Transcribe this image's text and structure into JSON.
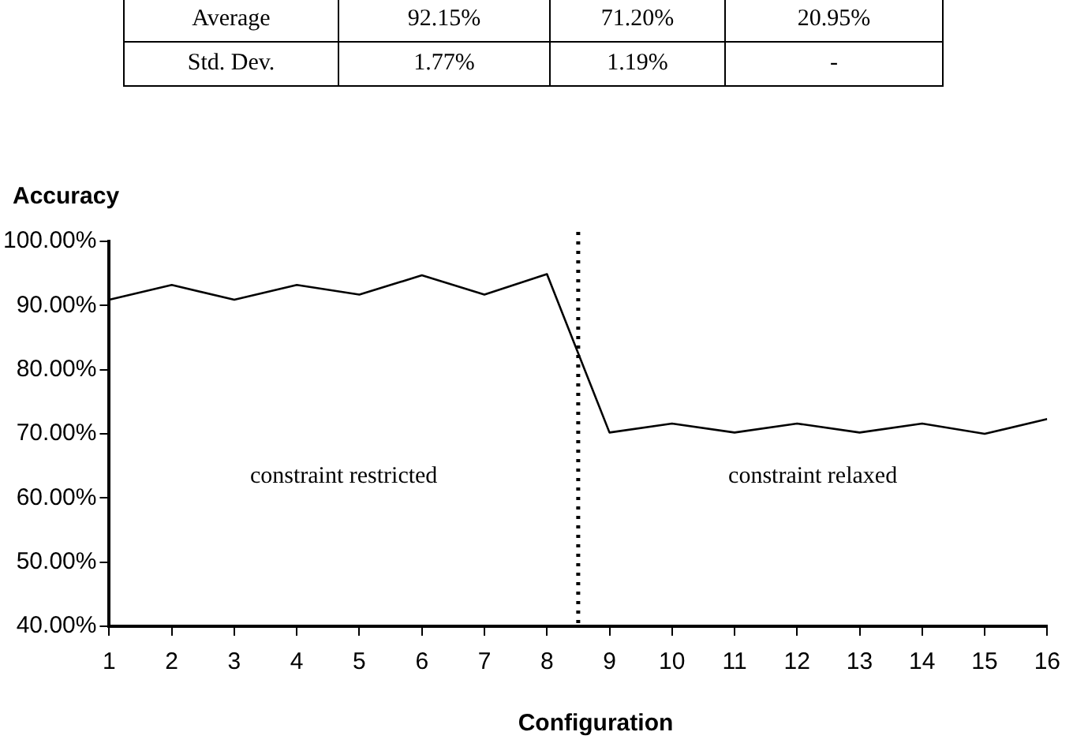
{
  "chart_data": {
    "type": "line",
    "xlabel": "Configuration",
    "ylabel": "Accuracy",
    "x": [
      1,
      2,
      3,
      4,
      5,
      6,
      7,
      8,
      9,
      10,
      11,
      12,
      13,
      14,
      15,
      16
    ],
    "series": [
      {
        "color": "#000000",
        "values": [
          90.9,
          93.2,
          90.9,
          93.2,
          91.7,
          94.7,
          91.7,
          94.9,
          70.2,
          71.6,
          70.2,
          71.6,
          70.2,
          71.6,
          70,
          72.3
        ]
      }
    ],
    "xlim": [
      1,
      16
    ],
    "xticks": [
      1,
      2,
      3,
      4,
      5,
      6,
      7,
      8,
      9,
      10,
      11,
      12,
      13,
      14,
      15,
      16
    ],
    "ylim": [
      40,
      100
    ],
    "yticks": [
      {
        "value": 40,
        "label": "40.00%"
      },
      {
        "value": 50,
        "label": "50.00%"
      },
      {
        "value": 60,
        "label": "60.00%"
      },
      {
        "value": 70,
        "label": "70.00%"
      },
      {
        "value": 80,
        "label": "80.00%"
      },
      {
        "value": 90,
        "label": "90.00%"
      },
      {
        "value": 100,
        "label": "100.00%"
      }
    ],
    "ref_lines": [
      {
        "axis": "x",
        "value": 8.5,
        "line_style": "dotted",
        "color": "#000000"
      }
    ],
    "grid": false,
    "legend": false,
    "marker": "none",
    "line_style": "solid",
    "annotations": [
      "Average",
      "92.15%",
      "71.20%",
      "20.95%",
      "Std. Dev.",
      "1.77%",
      "1.19%",
      "-",
      "constraint restricted",
      "constraint relaxed"
    ]
  }
}
